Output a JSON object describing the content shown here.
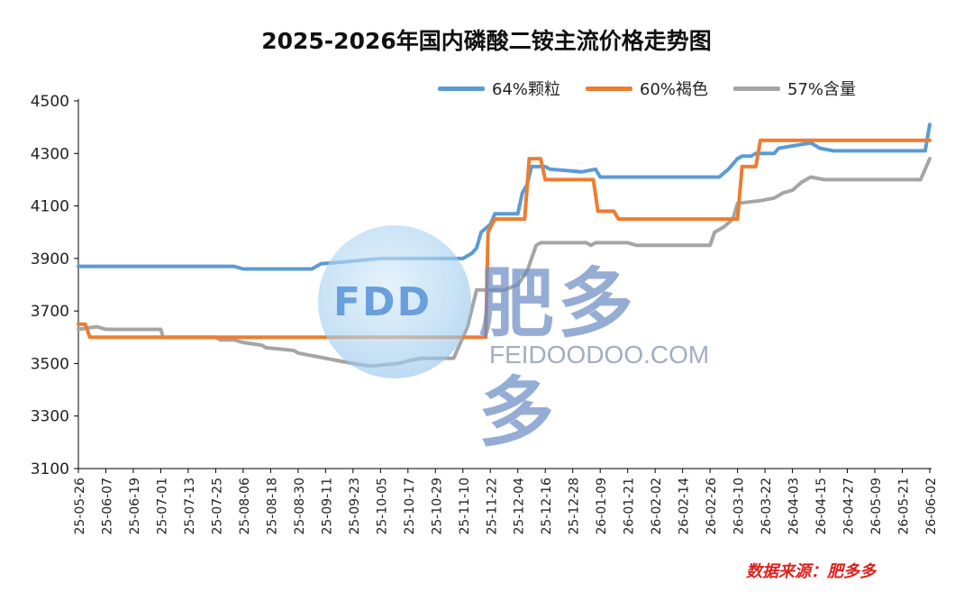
{
  "chart_data": {
    "type": "line",
    "title": "2025-2026年国内磷酸二铵主流价格走势图",
    "xlabel": "",
    "ylabel": "",
    "ylim": [
      3100,
      4500
    ],
    "yticks": [
      3100,
      3300,
      3500,
      3700,
      3900,
      4100,
      4300,
      4500
    ],
    "grid": false,
    "legend_position": "top-right",
    "x_tick_labels": [
      "25-05-26",
      "25-06-07",
      "25-06-19",
      "25-07-01",
      "25-07-13",
      "25-07-25",
      "25-08-06",
      "25-08-18",
      "25-08-30",
      "25-09-11",
      "25-09-23",
      "25-10-05",
      "25-10-17",
      "25-10-29",
      "25-11-10",
      "25-11-22",
      "25-12-04",
      "25-12-16",
      "25-12-28",
      "26-01-09",
      "26-01-21",
      "26-02-02",
      "26-02-14",
      "26-02-26",
      "26-03-10",
      "26-03-22",
      "26-04-03",
      "26-04-15",
      "26-04-27",
      "26-05-09",
      "26-05-21",
      "26-06-02"
    ],
    "series": [
      {
        "name": "64%颗粒",
        "color": "#5b9bd5",
        "points": [
          [
            "25-05-26",
            3870
          ],
          [
            "25-08-02",
            3870
          ],
          [
            "25-08-06",
            3860
          ],
          [
            "25-09-05",
            3860
          ],
          [
            "25-09-09",
            3880
          ],
          [
            "25-09-23",
            3890
          ],
          [
            "25-10-05",
            3900
          ],
          [
            "25-11-10",
            3900
          ],
          [
            "25-11-14",
            3920
          ],
          [
            "25-11-16",
            3940
          ],
          [
            "25-11-18",
            4000
          ],
          [
            "25-11-22",
            4030
          ],
          [
            "25-11-24",
            4070
          ],
          [
            "25-12-04",
            4070
          ],
          [
            "25-12-06",
            4150
          ],
          [
            "25-12-08",
            4180
          ],
          [
            "25-12-10",
            4250
          ],
          [
            "25-12-16",
            4250
          ],
          [
            "25-12-18",
            4240
          ],
          [
            "26-01-01",
            4230
          ],
          [
            "26-01-07",
            4240
          ],
          [
            "26-01-09",
            4210
          ],
          [
            "26-03-02",
            4210
          ],
          [
            "26-03-06",
            4240
          ],
          [
            "26-03-10",
            4280
          ],
          [
            "26-03-12",
            4290
          ],
          [
            "26-03-16",
            4290
          ],
          [
            "26-03-18",
            4300
          ],
          [
            "26-03-26",
            4300
          ],
          [
            "26-03-28",
            4320
          ],
          [
            "26-04-11",
            4340
          ],
          [
            "26-04-15",
            4320
          ],
          [
            "26-04-21",
            4310
          ],
          [
            "26-05-31",
            4310
          ],
          [
            "26-06-02",
            4410
          ]
        ]
      },
      {
        "name": "60%褐色",
        "color": "#ed7d31",
        "points": [
          [
            "25-05-26",
            3650
          ],
          [
            "25-05-29",
            3650
          ],
          [
            "25-05-31",
            3600
          ],
          [
            "25-07-01",
            3600
          ],
          [
            "25-11-20",
            3600
          ],
          [
            "25-11-21",
            4000
          ],
          [
            "25-11-24",
            4050
          ],
          [
            "25-12-07",
            4050
          ],
          [
            "25-12-09",
            4280
          ],
          [
            "25-12-14",
            4280
          ],
          [
            "25-12-16",
            4200
          ],
          [
            "26-01-06",
            4200
          ],
          [
            "26-01-08",
            4080
          ],
          [
            "26-01-15",
            4080
          ],
          [
            "26-01-17",
            4050
          ],
          [
            "26-03-10",
            4050
          ],
          [
            "26-03-12",
            4250
          ],
          [
            "26-03-18",
            4250
          ],
          [
            "26-03-20",
            4350
          ],
          [
            "26-06-02",
            4350
          ]
        ]
      },
      {
        "name": "57%含量",
        "color": "#a5a5a5",
        "points": [
          [
            "25-05-26",
            3630
          ],
          [
            "25-06-03",
            3640
          ],
          [
            "25-06-07",
            3630
          ],
          [
            "25-07-01",
            3630
          ],
          [
            "25-07-02",
            3600
          ],
          [
            "25-07-25",
            3600
          ],
          [
            "25-07-27",
            3590
          ],
          [
            "25-08-02",
            3590
          ],
          [
            "25-08-06",
            3580
          ],
          [
            "25-08-14",
            3570
          ],
          [
            "25-08-16",
            3560
          ],
          [
            "25-08-28",
            3550
          ],
          [
            "25-08-30",
            3540
          ],
          [
            "25-09-05",
            3530
          ],
          [
            "25-09-17",
            3510
          ],
          [
            "25-09-23",
            3500
          ],
          [
            "25-10-01",
            3490
          ],
          [
            "25-10-13",
            3500
          ],
          [
            "25-10-17",
            3510
          ],
          [
            "25-10-23",
            3520
          ],
          [
            "25-11-06",
            3520
          ],
          [
            "25-11-08",
            3560
          ],
          [
            "25-11-12",
            3640
          ],
          [
            "25-11-16",
            3780
          ],
          [
            "25-11-28",
            3780
          ],
          [
            "25-12-04",
            3800
          ],
          [
            "25-12-08",
            3850
          ],
          [
            "25-12-12",
            3950
          ],
          [
            "25-12-14",
            3960
          ],
          [
            "26-01-03",
            3960
          ],
          [
            "26-01-05",
            3950
          ],
          [
            "26-01-07",
            3960
          ],
          [
            "26-01-21",
            3960
          ],
          [
            "26-01-25",
            3950
          ],
          [
            "26-02-26",
            3950
          ],
          [
            "26-02-28",
            4000
          ],
          [
            "26-03-04",
            4020
          ],
          [
            "26-03-08",
            4050
          ],
          [
            "26-03-10",
            4110
          ],
          [
            "26-03-20",
            4120
          ],
          [
            "26-03-26",
            4130
          ],
          [
            "26-03-30",
            4150
          ],
          [
            "26-04-03",
            4160
          ],
          [
            "26-04-07",
            4190
          ],
          [
            "26-04-11",
            4210
          ],
          [
            "26-04-17",
            4200
          ],
          [
            "26-05-29",
            4200
          ],
          [
            "26-06-02",
            4280
          ]
        ]
      }
    ]
  },
  "source_label": "数据来源：肥多多",
  "watermark": {
    "logo_text": "FDD",
    "brand_cn": "肥多多",
    "brand_en": "FEIDOODOO.COM"
  }
}
